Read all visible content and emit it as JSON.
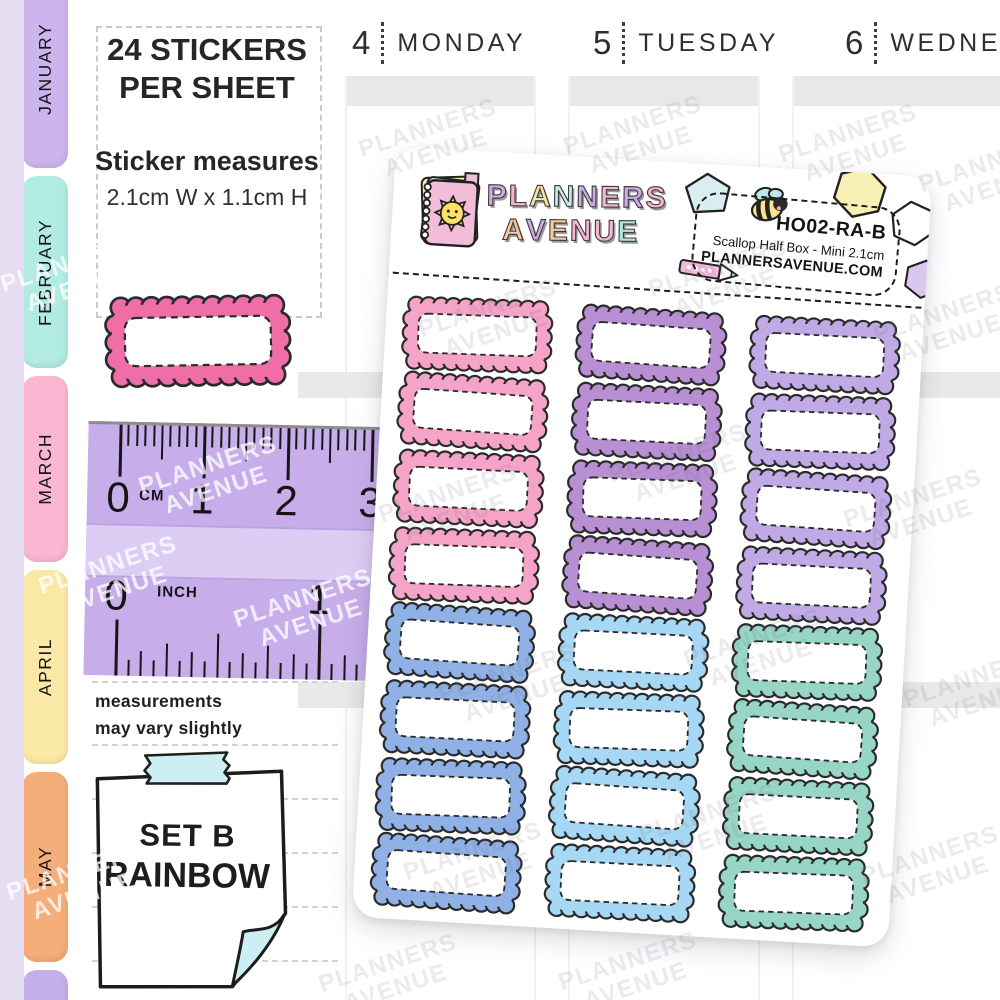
{
  "info_panel": {
    "title_line1": "24 STICKERS",
    "title_line2": "PER SHEET",
    "measures_heading": "Sticker measures",
    "measures_value": "2.1cm W  x  1.1cm H",
    "disclaimer_line1": "measurements",
    "disclaimer_line2": "may vary slightly"
  },
  "month_tabs": [
    {
      "label": "JANUARY",
      "color": "#ccb4ec"
    },
    {
      "label": "FEBRUARY",
      "color": "#b2ebe4"
    },
    {
      "label": "MARCH",
      "color": "#f9b7d2"
    },
    {
      "label": "APRIL",
      "color": "#fae9a6"
    },
    {
      "label": "MAY",
      "color": "#f5ad79"
    },
    {
      "label": "",
      "color": "#c4b0ea"
    }
  ],
  "planner_days": [
    {
      "number": "4",
      "name": "MONDAY"
    },
    {
      "number": "5",
      "name": "TUESDAY"
    },
    {
      "number": "6",
      "name": "WEDNE"
    }
  ],
  "sheet": {
    "brand_line1": "PLANNERS",
    "brand_line2": "AVENUE",
    "brand_colors_line1": [
      "#cdaae6",
      "#f7b3d2",
      "#fbe3a0",
      "#c3ece6",
      "#cdaae6",
      "#f7b3d2",
      "#cdaae6",
      "#f7b3d2"
    ],
    "brand_colors_line2": [
      "#fbc99d",
      "#cdaae6",
      "#fbc99d",
      "#f7b3d2",
      "#f7b3d2",
      "#aee6e2"
    ],
    "sku": "HO02-RA-B",
    "product": "Scallop Half Box - Mini 2.1cm",
    "website": "PLANNERSAVENUE.COM"
  },
  "stickers": {
    "sample_color": "#ef6ea8",
    "outline_color": "#2b2b2b",
    "palette": {
      "pink": "#f5a3c6",
      "purple": "#b78fd2",
      "lilac": "#bfaae6",
      "blue": "#8fb1e5",
      "sky": "#a6d7f4",
      "mint": "#97d5c6"
    },
    "rows": [
      [
        "pink",
        "purple",
        "lilac"
      ],
      [
        "pink",
        "purple",
        "lilac"
      ],
      [
        "pink",
        "purple",
        "lilac"
      ],
      [
        "pink",
        "purple",
        "lilac"
      ],
      [
        "blue",
        "sky",
        "mint"
      ],
      [
        "blue",
        "sky",
        "mint"
      ],
      [
        "blue",
        "sky",
        "mint"
      ],
      [
        "blue",
        "sky",
        "mint"
      ]
    ]
  },
  "ruler": {
    "cm_label": "CM",
    "cm_numbers": [
      "0",
      "1",
      "2",
      "3"
    ],
    "inch_label": "INCH",
    "inch_numbers": [
      "0",
      "1"
    ],
    "body_color": "#c7aeeb"
  },
  "sticky_note": {
    "line1": "SET B",
    "line2": "RAINBOW",
    "tape_color": "#cdeff3"
  },
  "watermark": {
    "line1": "PLANNERS",
    "line2": "AVENUE"
  }
}
